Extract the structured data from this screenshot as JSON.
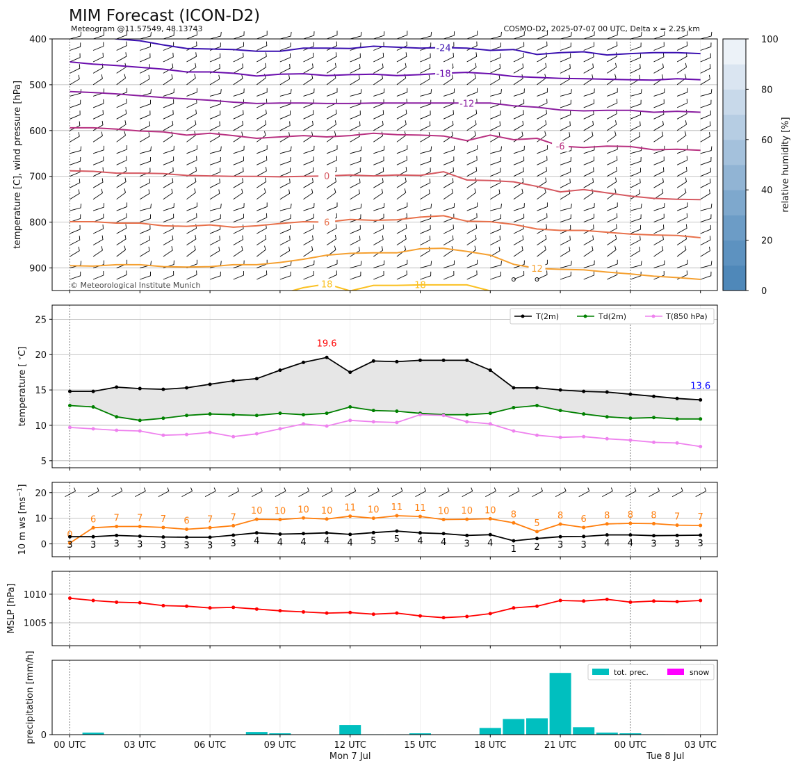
{
  "header": {
    "title": "MIM Forecast (ICON-D2)",
    "subtitle_left": "Meteogram @11.57549, 48.13743",
    "subtitle_right": "COSMO-D2, 2025-07-07 00 UTC, Delta x = 2.2$ km",
    "copyright": "© Meteorological Institute Munich"
  },
  "colors": {
    "t2m": "#000000",
    "td2m": "#008000",
    "t850": "#ee82ee",
    "gust": "#ff7f0e",
    "mslp": "#ff0000",
    "precip": "#00bfbf",
    "snow": "#ff00ff",
    "max_label": "#ff0000",
    "last_label": "#0000ff"
  },
  "x_axis": {
    "ticks": [
      "00 UTC",
      "03 UTC",
      "06 UTC",
      "09 UTC",
      "12 UTC",
      "15 UTC",
      "18 UTC",
      "21 UTC",
      "00 UTC",
      "03 UTC"
    ],
    "tick_hours": [
      0,
      3,
      6,
      9,
      12,
      15,
      18,
      21,
      24,
      27
    ],
    "date_labels": [
      {
        "hour": 12,
        "text": "Mon 7 Jul"
      },
      {
        "hour": 25.5,
        "text": "Tue 8 Jul"
      }
    ]
  },
  "chart_data": [
    {
      "id": "upper_air",
      "type": "line",
      "ylabel": "temperature [C], wind pressure [hPa]",
      "ylim": [
        950,
        400
      ],
      "yticks": [
        400,
        500,
        600,
        700,
        800,
        900
      ],
      "colorbar": {
        "label": "relative humidity [%]",
        "range": [
          0,
          100
        ],
        "ticks": [
          0,
          20,
          40,
          60,
          80,
          100
        ]
      },
      "isotherms": [
        {
          "label": "-24",
          "label_hour": 16,
          "color": "#3a10b0",
          "x": [
            0,
            1,
            2,
            3,
            4,
            5,
            6,
            7,
            8,
            9,
            10,
            11,
            12,
            13,
            14,
            15,
            16,
            17,
            18,
            19,
            20,
            21,
            22,
            23,
            24,
            25,
            26,
            27
          ],
          "y": [
            388,
            392,
            400,
            404,
            413,
            421,
            422,
            423,
            427,
            427,
            420,
            420,
            421,
            416,
            418,
            420,
            419,
            420,
            425,
            423,
            434,
            430,
            428,
            435,
            432,
            430,
            430,
            432
          ]
        },
        {
          "label": "-18",
          "label_hour": 16,
          "color": "#6a0dad",
          "x": [
            0,
            1,
            2,
            3,
            4,
            5,
            6,
            7,
            8,
            9,
            10,
            11,
            12,
            13,
            14,
            15,
            16,
            17,
            18,
            19,
            20,
            21,
            22,
            23,
            24,
            25,
            26,
            27
          ],
          "y": [
            450,
            455,
            458,
            462,
            466,
            472,
            472,
            475,
            481,
            477,
            476,
            480,
            478,
            477,
            480,
            478,
            475,
            473,
            476,
            482,
            484,
            486,
            487,
            488,
            489,
            490,
            487,
            489
          ]
        },
        {
          "label": "-12",
          "label_hour": 17,
          "color": "#8b1fa0",
          "x": [
            0,
            1,
            2,
            3,
            4,
            5,
            6,
            7,
            8,
            9,
            10,
            11,
            12,
            13,
            14,
            15,
            16,
            17,
            18,
            19,
            20,
            21,
            22,
            23,
            24,
            25,
            26,
            27
          ],
          "y": [
            515,
            517,
            520,
            524,
            528,
            531,
            534,
            538,
            541,
            540,
            540,
            541,
            541,
            540,
            540,
            540,
            540,
            540,
            540,
            546,
            549,
            555,
            557,
            556,
            556,
            560,
            558,
            560
          ]
        },
        {
          "label": "-6",
          "label_hour": 21,
          "color": "#b83080",
          "x": [
            0,
            1,
            2,
            3,
            4,
            5,
            6,
            7,
            8,
            9,
            10,
            11,
            12,
            13,
            14,
            15,
            16,
            17,
            18,
            19,
            20,
            21,
            22,
            23,
            24,
            25,
            26,
            27
          ],
          "y": [
            594,
            594,
            597,
            601,
            603,
            610,
            606,
            611,
            617,
            614,
            611,
            614,
            611,
            606,
            609,
            610,
            612,
            622,
            610,
            620,
            617,
            634,
            637,
            634,
            635,
            642,
            641,
            643
          ]
        },
        {
          "label": "0",
          "label_hour": 11,
          "color": "#d55860",
          "x": [
            0,
            1,
            2,
            3,
            4,
            5,
            6,
            7,
            8,
            9,
            10,
            11,
            12,
            13,
            14,
            15,
            16,
            17,
            18,
            19,
            20,
            21,
            22,
            23,
            24,
            25,
            26,
            27
          ],
          "y": [
            688,
            689,
            693,
            693,
            694,
            698,
            699,
            700,
            700,
            701,
            700,
            699,
            697,
            699,
            697,
            698,
            690,
            708,
            709,
            712,
            722,
            734,
            729,
            736,
            743,
            748,
            750,
            751
          ]
        },
        {
          "label": "6",
          "label_hour": 11,
          "color": "#e8704a",
          "x": [
            0,
            1,
            2,
            3,
            4,
            5,
            6,
            7,
            8,
            9,
            10,
            11,
            12,
            13,
            14,
            15,
            16,
            17,
            18,
            19,
            20,
            21,
            22,
            23,
            24,
            25,
            26,
            27
          ],
          "y": [
            799,
            799,
            802,
            802,
            808,
            809,
            806,
            811,
            808,
            803,
            799,
            800,
            794,
            796,
            795,
            789,
            786,
            798,
            799,
            805,
            815,
            818,
            818,
            822,
            826,
            828,
            829,
            834
          ]
        },
        {
          "label": "12",
          "label_hour": 20,
          "color": "#f5a030",
          "x": [
            0,
            1,
            2,
            3,
            4,
            5,
            6,
            7,
            8,
            9,
            10,
            11,
            12,
            13,
            14,
            15,
            16,
            17,
            18,
            19,
            20,
            21,
            22,
            23,
            24,
            25,
            26,
            27
          ],
          "y": [
            895,
            896,
            893,
            893,
            897,
            898,
            897,
            893,
            893,
            888,
            881,
            872,
            868,
            867,
            867,
            858,
            857,
            864,
            872,
            892,
            901,
            903,
            904,
            909,
            913,
            918,
            921,
            925
          ]
        },
        {
          "label": "18",
          "label_hour": 11,
          "color": "#fbc020",
          "x": [
            9.5,
            10,
            11,
            12,
            13,
            14,
            15,
            16,
            17,
            18
          ],
          "y": [
            950,
            943,
            935,
            950,
            938,
            938,
            937,
            937,
            937,
            950
          ]
        }
      ],
      "extra_label": {
        "text": "18",
        "hour": 15,
        "pressure": 936,
        "color": "#fbc020"
      }
    },
    {
      "id": "temperature",
      "type": "line",
      "ylabel": "temperature [$^\\circ$C]",
      "ylim": [
        4,
        27
      ],
      "yticks": [
        5,
        10,
        15,
        20,
        25
      ],
      "x": [
        0,
        1,
        2,
        3,
        4,
        5,
        6,
        7,
        8,
        9,
        10,
        11,
        12,
        13,
        14,
        15,
        16,
        17,
        18,
        19,
        20,
        21,
        22,
        23,
        24,
        25,
        26,
        27
      ],
      "series": [
        {
          "name": "T(2m)",
          "values": [
            14.8,
            14.8,
            15.4,
            15.2,
            15.1,
            15.3,
            15.8,
            16.3,
            16.6,
            17.8,
            18.9,
            19.6,
            17.5,
            19.1,
            19.0,
            19.2,
            19.2,
            19.2,
            17.8,
            15.3,
            15.3,
            15.0,
            14.8,
            14.7,
            14.4,
            14.1,
            13.8,
            13.6
          ]
        },
        {
          "name": "Td(2m)",
          "values": [
            12.8,
            12.6,
            11.2,
            10.7,
            11.0,
            11.4,
            11.6,
            11.5,
            11.4,
            11.7,
            11.5,
            11.7,
            12.6,
            12.1,
            12.0,
            11.7,
            11.5,
            11.5,
            11.7,
            12.5,
            12.8,
            12.1,
            11.6,
            11.2,
            11.0,
            11.1,
            10.9,
            10.9
          ]
        },
        {
          "name": "T(850 hPa)",
          "values": [
            9.7,
            9.5,
            9.3,
            9.2,
            8.6,
            8.7,
            9.0,
            8.4,
            8.8,
            9.5,
            10.2,
            9.9,
            10.7,
            10.5,
            10.4,
            11.5,
            11.4,
            10.5,
            10.2,
            9.2,
            8.6,
            8.3,
            8.4,
            8.1,
            7.9,
            7.6,
            7.5,
            7.0
          ]
        }
      ],
      "annotations": [
        {
          "text": "19.6",
          "hour": 11,
          "value": 19.6,
          "color_key": "max_label"
        },
        {
          "text": "13.6",
          "hour": 27,
          "value": 13.6,
          "color_key": "last_label"
        }
      ]
    },
    {
      "id": "wind",
      "type": "line",
      "ylabel": "10 m ws [ms$^{-1}$]",
      "ylim": [
        -5,
        24
      ],
      "yticks": [
        0,
        10,
        20
      ],
      "x": [
        0,
        1,
        2,
        3,
        4,
        5,
        6,
        7,
        8,
        9,
        10,
        11,
        12,
        13,
        14,
        15,
        16,
        17,
        18,
        19,
        20,
        21,
        22,
        23,
        24,
        25,
        26,
        27
      ],
      "series": [
        {
          "name": "gust",
          "values": [
            0,
            6,
            7,
            7,
            7,
            6,
            7,
            7,
            10,
            10,
            10,
            10,
            11,
            10,
            11,
            11,
            10,
            10,
            10,
            8,
            5,
            8,
            6,
            8,
            8,
            8,
            7,
            7
          ],
          "plotted": [
            0.3,
            6.3,
            6.8,
            6.8,
            6.4,
            5.7,
            6.3,
            7.1,
            9.6,
            9.5,
            10.1,
            9.7,
            10.8,
            10.0,
            11.0,
            10.7,
            9.5,
            9.6,
            9.8,
            8.2,
            4.8,
            7.7,
            6.4,
            7.8,
            8.0,
            7.9,
            7.3,
            7.2
          ],
          "labels": [
            "0",
            "6",
            "7",
            "7",
            "7",
            "6",
            "7",
            "7",
            "10",
            "10",
            "10",
            "10",
            "11",
            "10",
            "11",
            "11",
            "10",
            "10",
            "10",
            "8",
            "5",
            "8",
            "6",
            "8",
            "8",
            "8",
            "7",
            "7"
          ]
        },
        {
          "name": "wind speed",
          "values": [
            3,
            3,
            3,
            3,
            3,
            3,
            3,
            3,
            4,
            4,
            4,
            4,
            4,
            5,
            5,
            4,
            4,
            3,
            4,
            1,
            2,
            3,
            3,
            4,
            4,
            3,
            3,
            3
          ],
          "plotted": [
            2.8,
            2.8,
            3.3,
            3.0,
            2.7,
            2.6,
            2.6,
            3.4,
            4.3,
            3.8,
            4.0,
            4.3,
            3.7,
            4.4,
            5.0,
            4.3,
            4.0,
            3.3,
            3.6,
            1.2,
            2.1,
            2.8,
            2.9,
            3.5,
            3.5,
            3.2,
            3.3,
            3.4
          ],
          "labels": [
            "3",
            "3",
            "3",
            "3",
            "3",
            "3",
            "3",
            "3",
            "4",
            "4",
            "4",
            "4",
            "4",
            "5",
            "5",
            "4",
            "4",
            "3",
            "4",
            "1",
            "2",
            "3",
            "3",
            "4",
            "4",
            "3",
            "3",
            "3"
          ]
        }
      ]
    },
    {
      "id": "mslp",
      "type": "line",
      "ylabel": "MSLP [hPa]",
      "ylim": [
        1001,
        1014
      ],
      "yticks": [
        1005,
        1010
      ],
      "x": [
        0,
        1,
        2,
        3,
        4,
        5,
        6,
        7,
        8,
        9,
        10,
        11,
        12,
        13,
        14,
        15,
        16,
        17,
        18,
        19,
        20,
        21,
        22,
        23,
        24,
        25,
        26,
        27
      ],
      "series": [
        {
          "name": "MSLP",
          "values": [
            1009.3,
            1008.9,
            1008.6,
            1008.5,
            1008.0,
            1007.9,
            1007.6,
            1007.7,
            1007.4,
            1007.1,
            1006.9,
            1006.7,
            1006.8,
            1006.5,
            1006.7,
            1006.2,
            1005.9,
            1006.1,
            1006.6,
            1007.6,
            1007.9,
            1008.9,
            1008.8,
            1009.1,
            1008.6,
            1008.8,
            1008.7,
            1008.9
          ]
        }
      ]
    },
    {
      "id": "precipitation",
      "type": "bar",
      "ylabel": "precipitation [mm/h]",
      "ylim": [
        0,
        1.0
      ],
      "yticks": [
        0
      ],
      "x": [
        1,
        2,
        3,
        4,
        5,
        6,
        7,
        8,
        9,
        10,
        11,
        12,
        13,
        14,
        15,
        16,
        17,
        18,
        19,
        20,
        21,
        22,
        23,
        24,
        25,
        26
      ],
      "series": [
        {
          "name": "tot. prec.",
          "values": [
            0.027,
            0.005,
            0.005,
            0,
            0,
            0,
            0,
            0.036,
            0.018,
            0,
            0,
            0.13,
            0.005,
            0.005,
            0.018,
            0,
            0,
            0.09,
            0.21,
            0.22,
            0.83,
            0.1,
            0.027,
            0.018,
            0.005,
            0
          ]
        },
        {
          "name": "snow",
          "values": [
            0,
            0,
            0,
            0,
            0,
            0,
            0,
            0,
            0,
            0,
            0,
            0,
            0,
            0,
            0,
            0,
            0,
            0,
            0,
            0,
            0,
            0,
            0,
            0,
            0,
            0
          ]
        }
      ]
    }
  ],
  "legends": {
    "temperature": [
      "T(2m)",
      "Td(2m)",
      "T(850 hPa)"
    ],
    "precipitation": [
      "tot. prec.",
      "snow"
    ]
  }
}
